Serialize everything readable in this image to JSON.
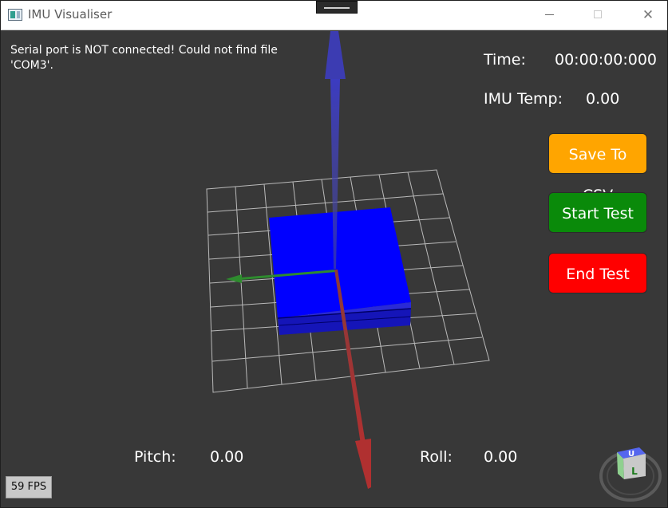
{
  "window": {
    "title": "IMU Visualiser"
  },
  "status": {
    "message": "Serial port is NOT connected! Could not find file 'COM3'."
  },
  "readouts": {
    "time_label": "Time:",
    "time_value": "00:00:00:000",
    "temp_label": "IMU Temp:",
    "temp_value": "0.00",
    "pitch_label": "Pitch:",
    "pitch_value": "0.00",
    "roll_label": "Roll:",
    "roll_value": "0.00"
  },
  "buttons": {
    "save_label": "Save To CSV",
    "start_label": "Start Test",
    "end_label": "End Test"
  },
  "fps": "59 FPS",
  "view_cube": {
    "top_letter": "U",
    "front_letter": "L"
  },
  "colors": {
    "save": "#ffa500",
    "start": "#0a8a0a",
    "end": "#ff0000",
    "block": "#0000ff",
    "axis_x": "#b03030",
    "axis_y": "#2e8b2e",
    "axis_z": "#3c3cc8"
  }
}
